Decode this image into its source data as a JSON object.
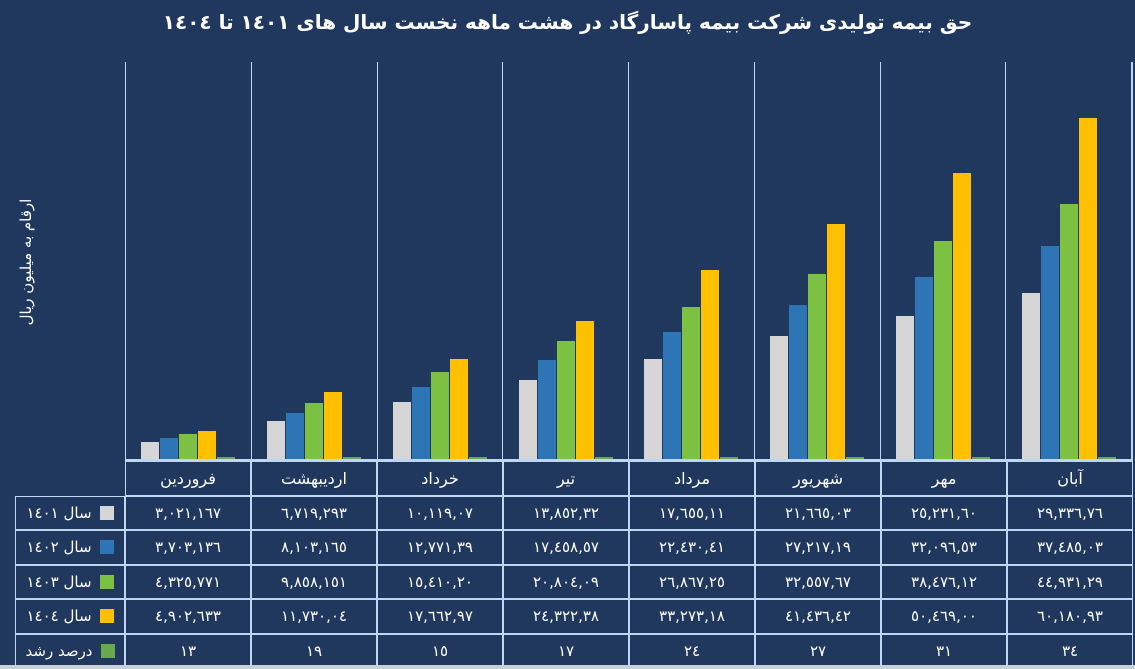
{
  "title": "حق بیمه تولیدی شرکت بیمه پاسارگاد در هشت ماهه نخست سال های ١٤٠١ تا ١٤٠٤",
  "ylabel": "ارقام به میلیون ریال",
  "colors": {
    "background": "#21385E",
    "gridline": "#BFD6F2",
    "text": "#FFFFFF",
    "series_1401": "#D6D6D6",
    "series_1402": "#2E75B6",
    "series_1403": "#7CC142",
    "series_1404": "#FFC000",
    "growth": "#69A84F"
  },
  "chart_data": {
    "type": "bar",
    "title": "حق بیمه تولیدی شرکت بیمه پاسارگاد در هشت ماهه نخست سال های ١٤٠١ تا ١٤٠٤",
    "ylabel": "ارقام به میلیون ریال",
    "ylim": [
      0,
      70000
    ],
    "grid": "vertical-only",
    "legend_position": "left-table-column",
    "categories": [
      "فروردین",
      "اردیبهشت",
      "خرداد",
      "تیر",
      "مرداد",
      "شهریور",
      "مهر",
      "آبان"
    ],
    "series": [
      {
        "name": "سال ١٤٠١",
        "color": "#D6D6D6",
        "is_growth_row": false,
        "values": [
          3021.167,
          6719.293,
          10119.07,
          13852.32,
          17655.11,
          21665.03,
          25231.6,
          29336.76
        ],
        "display": [
          "٣,٠٢١,١٦٧",
          "٦,٧١٩,٢٩٣",
          "١٠,١١٩,٠٧",
          "١٣,٨٥٢,٣٢",
          "١٧,٦٥٥,١١",
          "٢١,٦٦٥,٠٣",
          "٢٥,٢٣١,٦٠",
          "٢٩,٣٣٦,٧٦"
        ]
      },
      {
        "name": "سال ١٤٠٢",
        "color": "#2E75B6",
        "is_growth_row": false,
        "values": [
          3703.136,
          8103.165,
          12771.39,
          17458.57,
          22430.41,
          27217.19,
          32096.53,
          37485.03
        ],
        "display": [
          "٣,٧٠٣,١٣٦",
          "٨,١٠٣,١٦٥",
          "١٢,٧٧١,٣٩",
          "١٧,٤٥٨,٥٧",
          "٢٢,٤٣٠,٤١",
          "٢٧,٢١٧,١٩",
          "٣٢,٠٩٦,٥٣",
          "٣٧,٤٨٥,٠٣"
        ]
      },
      {
        "name": "سال ١٤٠٣",
        "color": "#7CC142",
        "is_growth_row": false,
        "values": [
          4325.771,
          9858.151,
          15410.2,
          20804.09,
          26867.25,
          32557.67,
          38476.12,
          44931.29
        ],
        "display": [
          "٤,٣٢٥,٧٧١",
          "٩,٨٥٨,١٥١",
          "١٥,٤١٠,٢٠",
          "٢٠,٨٠٤,٠٩",
          "٢٦,٨٦٧,٢٥",
          "٣٢,٥٥٧,٦٧",
          "٣٨,٤٧٦,١٢",
          "٤٤,٩٣١,٢٩"
        ]
      },
      {
        "name": "سال ١٤٠٤",
        "color": "#FFC000",
        "is_growth_row": false,
        "values": [
          4902.633,
          11730.04,
          17662.97,
          24322.38,
          33273.18,
          41436.42,
          50469.0,
          60180.93
        ],
        "display": [
          "٤,٩٠٢,٦٣٣",
          "١١,٧٣٠,٠٤",
          "١٧,٦٦٢,٩٧",
          "٢٤,٣٢٢,٣٨",
          "٣٣,٢٧٣,١٨",
          "٤١,٤٣٦,٤٢",
          "٥٠,٤٦٩,٠٠",
          "٦٠,١٨٠,٩٣"
        ]
      },
      {
        "name": "درصد رشد",
        "color": "#69A84F",
        "is_growth_row": true,
        "values": [
          13,
          19,
          15,
          17,
          24,
          27,
          31,
          34
        ],
        "display": [
          "١٣",
          "١٩",
          "١٥",
          "١٧",
          "٢٤",
          "٢٧",
          "٣١",
          "٣٤"
        ]
      }
    ]
  }
}
